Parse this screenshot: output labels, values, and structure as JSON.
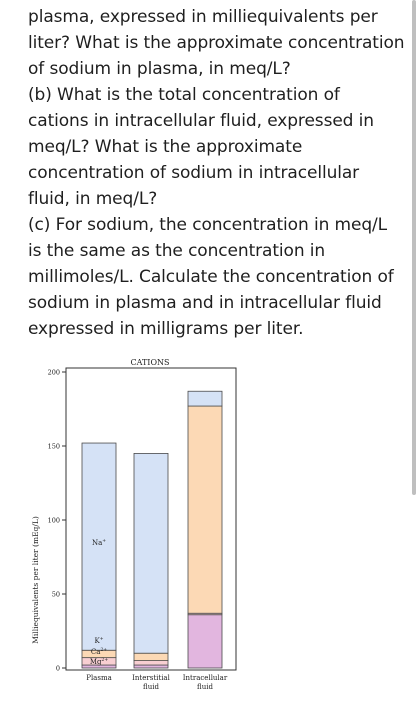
{
  "question": {
    "lines": [
      "plasma, expressed in milliequivalents per",
      "liter? What is the approximate concentration",
      "of sodium in plasma, in meq/L?",
      "(b) What is the total concentration of",
      "cations in intracellular fluid, expressed in",
      "meq/L? What is the approximate",
      "concentration of sodium in intracellular",
      "fluid, in meq/L?",
      "(c) For sodium, the concentration in meq/L",
      "is the same as the concentration in",
      "millimoles/L. Calculate the concentration of",
      "sodium in plasma and in intracellular fluid",
      "expressed in milligrams per liter."
    ]
  },
  "chart_data": {
    "type": "bar",
    "stacked": true,
    "title": "CATIONS",
    "ylabel": "Milliequivalents per liter (mEq/L)",
    "ylim": [
      0,
      200
    ],
    "yticks": [
      0,
      50,
      100,
      150,
      200
    ],
    "categories": [
      {
        "line1": "Plasma",
        "line2": ""
      },
      {
        "line1": "Interstitial",
        "line2": "fluid"
      },
      {
        "line1": "Intracellular",
        "line2": "fluid"
      }
    ],
    "series": [
      {
        "name": "Mg²⁺",
        "color": "#e2b6df",
        "values": [
          2,
          2,
          36
        ]
      },
      {
        "name": "Ca²⁺",
        "color": "#f8cfd2",
        "values": [
          5,
          3,
          1
        ]
      },
      {
        "name": "K⁺",
        "color": "#fcd9b5",
        "values": [
          5,
          5,
          140
        ]
      },
      {
        "name": "Na⁺",
        "color": "#d5e2f6",
        "values": [
          140,
          135,
          10
        ]
      }
    ],
    "labels": {
      "na": "Na",
      "na_sup": "+",
      "k": "K",
      "k_sup": "+",
      "ca": "Ca",
      "ca_sup": "2+",
      "mg": "Mg",
      "mg_sup": "2+"
    },
    "grid": false,
    "legend": "none"
  }
}
